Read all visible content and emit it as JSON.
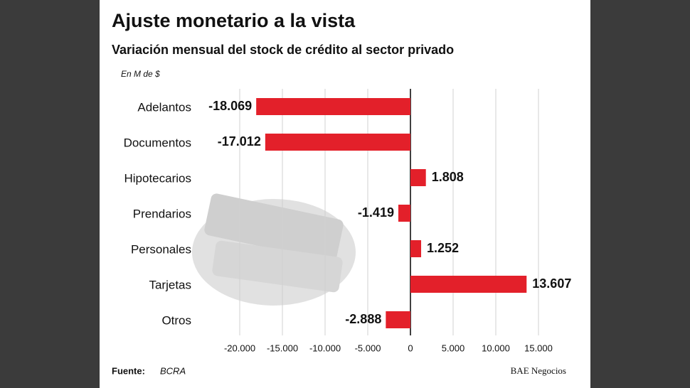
{
  "chart_data": {
    "type": "hbar",
    "title": "Ajuste monetario a la vista",
    "subtitle": "Variación mensual del stock de crédito al sector privado",
    "unit_label": "En M de $",
    "categories": [
      "Adelantos",
      "Documentos",
      "Hipotecarios",
      "Prendarios",
      "Personales",
      "Tarjetas",
      "Otros"
    ],
    "values": [
      -18069,
      -17012,
      1808,
      -1419,
      1252,
      13607,
      -2888
    ],
    "value_labels": [
      "-18.069",
      "-17.012",
      "1.808",
      "-1.419",
      "1.252",
      "13.607",
      "-2.888"
    ],
    "color": "#e3202a",
    "xlim": [
      -20000,
      15000
    ],
    "xticks": [
      {
        "value": -20000,
        "label": "-20.000"
      },
      {
        "value": -15000,
        "label": "-15.000"
      },
      {
        "value": -10000,
        "label": "-10.000"
      },
      {
        "value": -5000,
        "label": "-5.000"
      },
      0,
      {
        "value": 5000,
        "label": "5.000"
      },
      {
        "value": 10000,
        "label": "10.000"
      },
      {
        "value": 15000,
        "label": "15.000"
      }
    ],
    "grid": true,
    "source_label": "Fuente:",
    "source": "BCRA",
    "brand": "BAE Negocios"
  }
}
